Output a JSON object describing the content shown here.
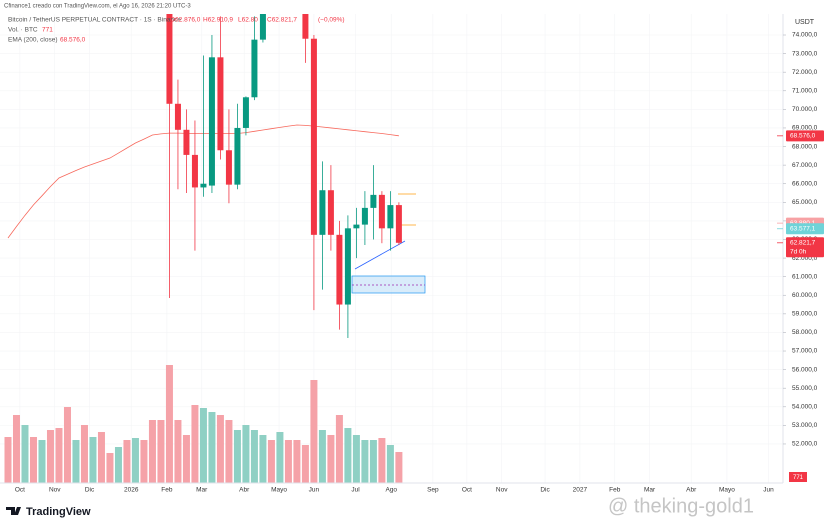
{
  "header": {
    "credit": "Cfinance1 creado con TradingView.com, el Ago 16, 2026 21:20 UTC-3",
    "symbol": "Bitcoin / TetherUS PERPETUAL CONTRACT · 1S · Binance",
    "ohlc": [
      "O62.876,0",
      "H62.910,9",
      "L62.80",
      "C62.821,7",
      "(−0,09%)"
    ],
    "volume_label": "Vol. · BTC",
    "volume_value": "771",
    "ema_label": "EMA (200, close)",
    "currency": "USDT"
  },
  "chart_data": {
    "type": "candlestick",
    "xlim": [
      -0.94,
      91.2
    ],
    "xticks": [
      {
        "value": 1.4,
        "label": "Oct"
      },
      {
        "value": 5.5,
        "label": "Nov"
      },
      {
        "value": 9.6,
        "label": "Dic"
      },
      {
        "value": 14.5,
        "label": "2026"
      },
      {
        "value": 18.7,
        "label": "Feb"
      },
      {
        "value": 22.8,
        "label": "Mar"
      },
      {
        "value": 27.8,
        "label": "Abr"
      },
      {
        "value": 31.9,
        "label": "Mayo"
      },
      {
        "value": 36,
        "label": "Jun"
      },
      {
        "value": 40.9,
        "label": "Jul"
      },
      {
        "value": 45.1,
        "label": "Ago"
      },
      {
        "value": 50,
        "label": "Sep"
      },
      {
        "value": 54,
        "label": "Oct"
      },
      {
        "value": 58.1,
        "label": "Nov"
      },
      {
        "value": 63.2,
        "label": "Dic"
      },
      {
        "value": 67.3,
        "label": "2027"
      },
      {
        "value": 71.4,
        "label": "Feb"
      },
      {
        "value": 75.5,
        "label": "Mar"
      },
      {
        "value": 80.4,
        "label": "Abr"
      },
      {
        "value": 84.6,
        "label": "Mayo"
      },
      {
        "value": 89.5,
        "label": "Jun"
      }
    ],
    "ylim": [
      49900,
      75130
    ],
    "yticks": [
      {
        "value": 52000,
        "label": "52.000,0"
      },
      {
        "value": 53000,
        "label": "53.000,0"
      },
      {
        "value": 54000,
        "label": "54.000,0"
      },
      {
        "value": 55000,
        "label": "55.000,0"
      },
      {
        "value": 56000,
        "label": "56.000,0"
      },
      {
        "value": 57000,
        "label": "57.000,0"
      },
      {
        "value": 58000,
        "label": "58.000,0"
      },
      {
        "value": 59000,
        "label": "59.000,0"
      },
      {
        "value": 60000,
        "label": "60.000,0"
      },
      {
        "value": 61000,
        "label": "61.000,0"
      },
      {
        "value": 62000,
        "label": "62.000,0"
      },
      {
        "value": 63000,
        "label": "63.000,0"
      },
      {
        "value": 64000,
        "label": "64.000,0"
      },
      {
        "value": 65000,
        "label": "65.000,0"
      },
      {
        "value": 66000,
        "label": "66.000,0"
      },
      {
        "value": 67000,
        "label": "67.000,0"
      },
      {
        "value": 68000,
        "label": "68.000,0"
      },
      {
        "value": 69000,
        "label": "69.000,0"
      },
      {
        "value": 70000,
        "label": "70.000,0"
      },
      {
        "value": 71000,
        "label": "71.000,0"
      },
      {
        "value": 72000,
        "label": "72.000,0"
      },
      {
        "value": 73000,
        "label": "73.000,0"
      },
      {
        "value": 74000,
        "label": "74.000,0"
      }
    ],
    "grid": true,
    "up_color": "#089981",
    "down_color": "#f23645",
    "open": [
      null,
      null,
      null,
      null,
      null,
      null,
      null,
      null,
      null,
      null,
      null,
      null,
      null,
      null,
      null,
      null,
      null,
      null,
      null,
      75500,
      70300,
      68900,
      67550,
      65800,
      65900,
      72800,
      67800,
      65950,
      69000,
      70650,
      73750,
      null,
      null,
      null,
      null,
      75500,
      73800,
      63250,
      65650,
      63250,
      59500,
      63600,
      63800,
      64700,
      65400,
      63600,
      64850
    ],
    "high": [
      null,
      null,
      null,
      null,
      null,
      null,
      null,
      null,
      null,
      null,
      null,
      null,
      null,
      null,
      null,
      null,
      null,
      null,
      null,
      76000,
      71600,
      70000,
      69400,
      72900,
      74000,
      75000,
      70000,
      70300,
      70700,
      75000,
      76000,
      null,
      null,
      null,
      null,
      76000,
      74000,
      67200,
      67000,
      64000,
      64300,
      64700,
      65600,
      67000,
      65600,
      65600,
      65000
    ],
    "low": [
      null,
      null,
      null,
      null,
      null,
      null,
      null,
      null,
      null,
      null,
      null,
      null,
      null,
      null,
      null,
      null,
      null,
      null,
      null,
      59850,
      65700,
      65500,
      62400,
      65300,
      65500,
      67300,
      64950,
      65700,
      68600,
      70500,
      73600,
      null,
      null,
      null,
      null,
      72500,
      59200,
      60300,
      62400,
      58150,
      57700,
      62000,
      62700,
      63000,
      62800,
      62400,
      62700
    ],
    "close": [
      null,
      null,
      null,
      null,
      null,
      null,
      null,
      null,
      null,
      null,
      null,
      null,
      null,
      null,
      null,
      null,
      null,
      null,
      null,
      70300,
      68900,
      67550,
      65800,
      66000,
      72800,
      67800,
      65950,
      69000,
      70650,
      73750,
      75500,
      null,
      null,
      null,
      null,
      73800,
      63250,
      65650,
      63250,
      59500,
      63600,
      63800,
      64700,
      65400,
      63600,
      64850,
      62821.7
    ],
    "volume": [
      46,
      68,
      58,
      46,
      43,
      53,
      55,
      76,
      43,
      58,
      46,
      51,
      30,
      36,
      43,
      45,
      43,
      63,
      63,
      118,
      63,
      48,
      78,
      75,
      71,
      68,
      63,
      53,
      58,
      53,
      48,
      43,
      51,
      43,
      43,
      38,
      103,
      53,
      48,
      68,
      55,
      48,
      43,
      43,
      45,
      38,
      31
    ],
    "volume_up": [
      false,
      false,
      true,
      false,
      true,
      false,
      false,
      false,
      true,
      false,
      true,
      false,
      false,
      true,
      false,
      true,
      false,
      false,
      false,
      false,
      false,
      false,
      false,
      true,
      true,
      false,
      false,
      true,
      true,
      true,
      true,
      false,
      true,
      false,
      false,
      false,
      false,
      true,
      false,
      false,
      true,
      true,
      true,
      true,
      false,
      true,
      false
    ],
    "volume_ylim": [
      0,
      150
    ],
    "volume_up_color": "#8fd0c4",
    "volume_down_color": "#f5a2a8",
    "ema": {
      "name": "EMA (200, close)",
      "color": "#f7685c",
      "values": [
        63080,
        63700,
        64300,
        64860,
        65350,
        65850,
        66310,
        66510,
        66710,
        66900,
        67060,
        67220,
        67380,
        67650,
        67920,
        68190,
        68400,
        68620,
        68680,
        68720,
        68720,
        68710,
        68700,
        68700,
        68700,
        68700,
        68700,
        68700,
        68750,
        68820,
        68890,
        68960,
        69030,
        69100,
        69160,
        69140,
        69100,
        69050,
        69000,
        68950,
        68900,
        68850,
        68800,
        68750,
        68700,
        68640,
        68576
      ]
    },
    "price_labels": [
      {
        "value": 68576.0,
        "label": "68.576,0",
        "color": "#f23645"
      },
      {
        "value": 63880.1,
        "label": "63.880,1",
        "color": "#f7a1a4"
      },
      {
        "value": 63577.1,
        "label": "63.577,1",
        "color": "#6fd3d8"
      },
      {
        "value": 62821.7,
        "label": "62.821,7",
        "color": "#f23645",
        "sublabel": "7d 0h"
      }
    ]
  },
  "footer": {
    "brand": "TradingView",
    "watermark": "@ theking-gold1"
  }
}
